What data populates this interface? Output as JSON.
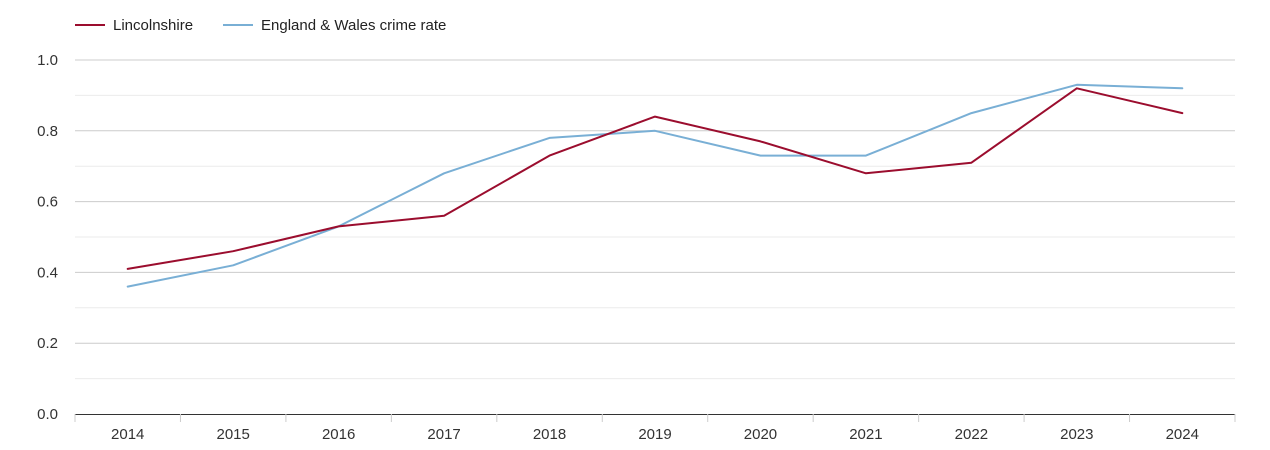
{
  "chart_data": {
    "type": "line",
    "title": "",
    "xlabel": "",
    "ylabel": "",
    "categories": [
      "2014",
      "2015",
      "2016",
      "2017",
      "2018",
      "2019",
      "2020",
      "2021",
      "2022",
      "2023",
      "2024"
    ],
    "ylim": [
      0,
      1
    ],
    "yticks": [
      "0.0",
      "0.2",
      "0.4",
      "0.6",
      "0.8",
      "1.0"
    ],
    "ytick_values": [
      0,
      0.2,
      0.4,
      0.6,
      0.8,
      1.0
    ],
    "grid": true,
    "legend_position": "top-left",
    "series": [
      {
        "name": "Lincolnshire",
        "color": "#9b0d2e",
        "values": [
          0.41,
          0.46,
          0.53,
          0.56,
          0.73,
          0.84,
          0.77,
          0.68,
          0.71,
          0.92,
          0.85
        ]
      },
      {
        "name": "England & Wales crime rate",
        "color": "#79afd5",
        "values": [
          0.36,
          0.42,
          0.53,
          0.68,
          0.78,
          0.8,
          0.73,
          0.73,
          0.85,
          0.93,
          0.92
        ]
      }
    ]
  }
}
